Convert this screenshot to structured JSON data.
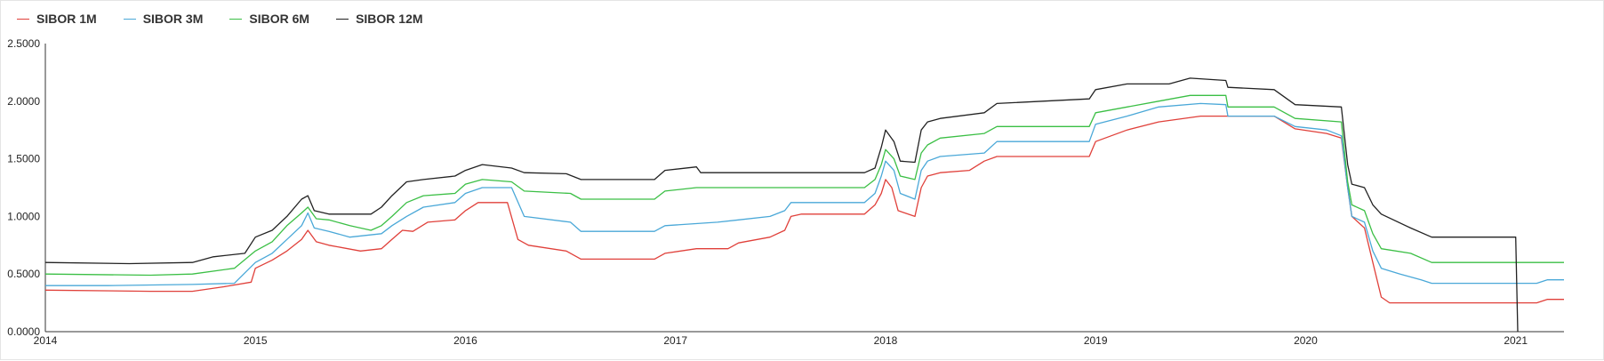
{
  "chart_data": {
    "type": "line",
    "title": "",
    "xlabel": "",
    "ylabel": "",
    "xlim": [
      2014.0,
      2021.23
    ],
    "ylim": [
      0,
      2.5
    ],
    "grid": false,
    "legend_position": "top-left",
    "x_ticks": [
      {
        "value": 2014,
        "label": "2014"
      },
      {
        "value": 2015,
        "label": "2015"
      },
      {
        "value": 2016,
        "label": "2016"
      },
      {
        "value": 2017,
        "label": "2017"
      },
      {
        "value": 2018,
        "label": "2018"
      },
      {
        "value": 2019,
        "label": "2019"
      },
      {
        "value": 2020,
        "label": "2020"
      },
      {
        "value": 2021,
        "label": "2021"
      }
    ],
    "y_ticks": [
      {
        "value": 0,
        "label": "0.0000"
      },
      {
        "value": 0.5,
        "label": "0.5000"
      },
      {
        "value": 1.0,
        "label": "1.0000"
      },
      {
        "value": 1.5,
        "label": "1.5000"
      },
      {
        "value": 2.0,
        "label": "2.0000"
      },
      {
        "value": 2.5,
        "label": "2.5000"
      }
    ],
    "series": [
      {
        "name": "SIBOR 1M",
        "color": "#e0403a",
        "points": [
          [
            2014.0,
            0.36
          ],
          [
            2014.5,
            0.35
          ],
          [
            2014.7,
            0.35
          ],
          [
            2014.85,
            0.39
          ],
          [
            2014.98,
            0.43
          ],
          [
            2015.0,
            0.55
          ],
          [
            2015.08,
            0.62
          ],
          [
            2015.15,
            0.7
          ],
          [
            2015.22,
            0.8
          ],
          [
            2015.25,
            0.88
          ],
          [
            2015.29,
            0.78
          ],
          [
            2015.35,
            0.75
          ],
          [
            2015.5,
            0.7
          ],
          [
            2015.6,
            0.72
          ],
          [
            2015.65,
            0.8
          ],
          [
            2015.7,
            0.88
          ],
          [
            2015.75,
            0.87
          ],
          [
            2015.82,
            0.95
          ],
          [
            2015.95,
            0.97
          ],
          [
            2016.0,
            1.05
          ],
          [
            2016.06,
            1.12
          ],
          [
            2016.2,
            1.12
          ],
          [
            2016.25,
            0.8
          ],
          [
            2016.3,
            0.75
          ],
          [
            2016.48,
            0.7
          ],
          [
            2016.55,
            0.63
          ],
          [
            2016.9,
            0.63
          ],
          [
            2016.95,
            0.68
          ],
          [
            2017.1,
            0.72
          ],
          [
            2017.25,
            0.72
          ],
          [
            2017.3,
            0.77
          ],
          [
            2017.45,
            0.82
          ],
          [
            2017.52,
            0.88
          ],
          [
            2017.55,
            1.0
          ],
          [
            2017.6,
            1.02
          ],
          [
            2017.9,
            1.02
          ],
          [
            2017.95,
            1.1
          ],
          [
            2017.98,
            1.2
          ],
          [
            2018.0,
            1.32
          ],
          [
            2018.03,
            1.25
          ],
          [
            2018.06,
            1.05
          ],
          [
            2018.14,
            1.0
          ],
          [
            2018.17,
            1.25
          ],
          [
            2018.2,
            1.35
          ],
          [
            2018.26,
            1.38
          ],
          [
            2018.4,
            1.4
          ],
          [
            2018.47,
            1.48
          ],
          [
            2018.53,
            1.52
          ],
          [
            2018.97,
            1.52
          ],
          [
            2019.0,
            1.65
          ],
          [
            2019.15,
            1.75
          ],
          [
            2019.3,
            1.82
          ],
          [
            2019.5,
            1.87
          ],
          [
            2019.85,
            1.87
          ],
          [
            2019.95,
            1.76
          ],
          [
            2020.1,
            1.72
          ],
          [
            2020.17,
            1.68
          ],
          [
            2020.2,
            1.25
          ],
          [
            2020.22,
            1.0
          ],
          [
            2020.28,
            0.9
          ],
          [
            2020.32,
            0.6
          ],
          [
            2020.36,
            0.3
          ],
          [
            2020.4,
            0.25
          ],
          [
            2021.1,
            0.25
          ],
          [
            2021.15,
            0.28
          ],
          [
            2021.23,
            0.28
          ]
        ]
      },
      {
        "name": "SIBOR 3M",
        "color": "#4aa8d8",
        "points": [
          [
            2014.0,
            0.4
          ],
          [
            2014.3,
            0.4
          ],
          [
            2014.7,
            0.41
          ],
          [
            2014.9,
            0.42
          ],
          [
            2015.0,
            0.6
          ],
          [
            2015.08,
            0.68
          ],
          [
            2015.15,
            0.8
          ],
          [
            2015.22,
            0.92
          ],
          [
            2015.25,
            1.03
          ],
          [
            2015.28,
            0.9
          ],
          [
            2015.35,
            0.87
          ],
          [
            2015.45,
            0.82
          ],
          [
            2015.6,
            0.85
          ],
          [
            2015.65,
            0.92
          ],
          [
            2015.72,
            1.0
          ],
          [
            2015.8,
            1.08
          ],
          [
            2015.95,
            1.12
          ],
          [
            2016.0,
            1.2
          ],
          [
            2016.08,
            1.25
          ],
          [
            2016.22,
            1.25
          ],
          [
            2016.28,
            1.0
          ],
          [
            2016.5,
            0.95
          ],
          [
            2016.55,
            0.87
          ],
          [
            2016.9,
            0.87
          ],
          [
            2016.95,
            0.92
          ],
          [
            2017.2,
            0.95
          ],
          [
            2017.3,
            0.97
          ],
          [
            2017.45,
            1.0
          ],
          [
            2017.52,
            1.05
          ],
          [
            2017.55,
            1.12
          ],
          [
            2017.9,
            1.12
          ],
          [
            2017.95,
            1.2
          ],
          [
            2017.98,
            1.35
          ],
          [
            2018.0,
            1.48
          ],
          [
            2018.04,
            1.4
          ],
          [
            2018.07,
            1.2
          ],
          [
            2018.14,
            1.15
          ],
          [
            2018.17,
            1.4
          ],
          [
            2018.2,
            1.48
          ],
          [
            2018.26,
            1.52
          ],
          [
            2018.47,
            1.55
          ],
          [
            2018.53,
            1.65
          ],
          [
            2018.97,
            1.65
          ],
          [
            2019.0,
            1.8
          ],
          [
            2019.15,
            1.87
          ],
          [
            2019.3,
            1.95
          ],
          [
            2019.5,
            1.98
          ],
          [
            2019.62,
            1.97
          ],
          [
            2019.63,
            1.87
          ],
          [
            2019.85,
            1.87
          ],
          [
            2019.95,
            1.78
          ],
          [
            2020.1,
            1.75
          ],
          [
            2020.17,
            1.7
          ],
          [
            2020.2,
            1.25
          ],
          [
            2020.22,
            1.0
          ],
          [
            2020.28,
            0.95
          ],
          [
            2020.32,
            0.7
          ],
          [
            2020.36,
            0.55
          ],
          [
            2020.45,
            0.5
          ],
          [
            2020.55,
            0.45
          ],
          [
            2020.6,
            0.42
          ],
          [
            2021.1,
            0.42
          ],
          [
            2021.15,
            0.45
          ],
          [
            2021.23,
            0.45
          ]
        ]
      },
      {
        "name": "SIBOR 6M",
        "color": "#3bbf45",
        "points": [
          [
            2014.0,
            0.5
          ],
          [
            2014.5,
            0.49
          ],
          [
            2014.7,
            0.5
          ],
          [
            2014.9,
            0.55
          ],
          [
            2015.0,
            0.7
          ],
          [
            2015.08,
            0.78
          ],
          [
            2015.15,
            0.92
          ],
          [
            2015.22,
            1.03
          ],
          [
            2015.25,
            1.08
          ],
          [
            2015.29,
            0.98
          ],
          [
            2015.35,
            0.97
          ],
          [
            2015.45,
            0.92
          ],
          [
            2015.55,
            0.88
          ],
          [
            2015.6,
            0.92
          ],
          [
            2015.65,
            1.0
          ],
          [
            2015.72,
            1.12
          ],
          [
            2015.8,
            1.18
          ],
          [
            2015.95,
            1.2
          ],
          [
            2016.0,
            1.28
          ],
          [
            2016.08,
            1.32
          ],
          [
            2016.22,
            1.3
          ],
          [
            2016.28,
            1.22
          ],
          [
            2016.5,
            1.2
          ],
          [
            2016.55,
            1.15
          ],
          [
            2016.9,
            1.15
          ],
          [
            2016.95,
            1.22
          ],
          [
            2017.1,
            1.25
          ],
          [
            2017.55,
            1.25
          ],
          [
            2017.6,
            1.25
          ],
          [
            2017.9,
            1.25
          ],
          [
            2017.95,
            1.32
          ],
          [
            2017.98,
            1.45
          ],
          [
            2018.0,
            1.58
          ],
          [
            2018.04,
            1.5
          ],
          [
            2018.07,
            1.35
          ],
          [
            2018.14,
            1.32
          ],
          [
            2018.17,
            1.55
          ],
          [
            2018.2,
            1.62
          ],
          [
            2018.26,
            1.68
          ],
          [
            2018.47,
            1.72
          ],
          [
            2018.53,
            1.78
          ],
          [
            2018.97,
            1.78
          ],
          [
            2019.0,
            1.9
          ],
          [
            2019.15,
            1.95
          ],
          [
            2019.3,
            2.0
          ],
          [
            2019.45,
            2.05
          ],
          [
            2019.62,
            2.05
          ],
          [
            2019.63,
            1.95
          ],
          [
            2019.85,
            1.95
          ],
          [
            2019.95,
            1.85
          ],
          [
            2020.17,
            1.82
          ],
          [
            2020.2,
            1.3
          ],
          [
            2020.22,
            1.1
          ],
          [
            2020.28,
            1.05
          ],
          [
            2020.32,
            0.85
          ],
          [
            2020.36,
            0.72
          ],
          [
            2020.5,
            0.68
          ],
          [
            2020.6,
            0.6
          ],
          [
            2021.23,
            0.6
          ]
        ]
      },
      {
        "name": "SIBOR 12M",
        "color": "#222222",
        "points": [
          [
            2014.0,
            0.6
          ],
          [
            2014.4,
            0.59
          ],
          [
            2014.7,
            0.6
          ],
          [
            2014.8,
            0.65
          ],
          [
            2014.95,
            0.68
          ],
          [
            2015.0,
            0.82
          ],
          [
            2015.08,
            0.88
          ],
          [
            2015.15,
            1.0
          ],
          [
            2015.22,
            1.15
          ],
          [
            2015.25,
            1.18
          ],
          [
            2015.28,
            1.05
          ],
          [
            2015.35,
            1.02
          ],
          [
            2015.55,
            1.02
          ],
          [
            2015.6,
            1.08
          ],
          [
            2015.65,
            1.18
          ],
          [
            2015.72,
            1.3
          ],
          [
            2015.8,
            1.32
          ],
          [
            2015.95,
            1.35
          ],
          [
            2016.0,
            1.4
          ],
          [
            2016.08,
            1.45
          ],
          [
            2016.22,
            1.42
          ],
          [
            2016.28,
            1.38
          ],
          [
            2016.48,
            1.37
          ],
          [
            2016.55,
            1.32
          ],
          [
            2016.9,
            1.32
          ],
          [
            2016.95,
            1.4
          ],
          [
            2017.1,
            1.43
          ],
          [
            2017.12,
            1.38
          ],
          [
            2017.9,
            1.38
          ],
          [
            2017.95,
            1.42
          ],
          [
            2017.98,
            1.6
          ],
          [
            2018.0,
            1.75
          ],
          [
            2018.04,
            1.65
          ],
          [
            2018.07,
            1.48
          ],
          [
            2018.14,
            1.47
          ],
          [
            2018.17,
            1.75
          ],
          [
            2018.2,
            1.82
          ],
          [
            2018.26,
            1.85
          ],
          [
            2018.47,
            1.9
          ],
          [
            2018.53,
            1.98
          ],
          [
            2018.97,
            2.02
          ],
          [
            2019.0,
            2.1
          ],
          [
            2019.15,
            2.15
          ],
          [
            2019.35,
            2.15
          ],
          [
            2019.45,
            2.2
          ],
          [
            2019.62,
            2.18
          ],
          [
            2019.63,
            2.12
          ],
          [
            2019.85,
            2.1
          ],
          [
            2019.95,
            1.97
          ],
          [
            2020.17,
            1.95
          ],
          [
            2020.2,
            1.45
          ],
          [
            2020.22,
            1.28
          ],
          [
            2020.28,
            1.25
          ],
          [
            2020.32,
            1.1
          ],
          [
            2020.36,
            1.02
          ],
          [
            2020.5,
            0.9
          ],
          [
            2020.6,
            0.82
          ],
          [
            2021.0,
            0.82
          ],
          [
            2021.01,
            0.0
          ]
        ]
      }
    ]
  }
}
